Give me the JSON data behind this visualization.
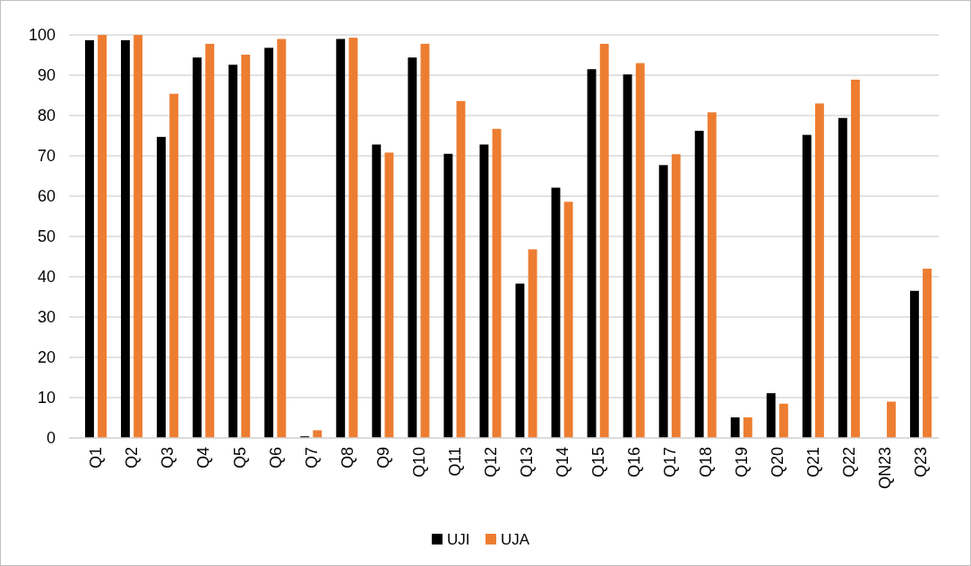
{
  "chart_data": {
    "type": "bar",
    "categories": [
      "Q1",
      "Q2",
      "Q3",
      "Q4",
      "Q5",
      "Q6",
      "Q7",
      "Q8",
      "Q9",
      "Q10",
      "Q11",
      "Q12",
      "Q13",
      "Q14",
      "Q15",
      "Q16",
      "Q17",
      "Q18",
      "Q19",
      "Q20",
      "Q21",
      "Q22",
      "QN23",
      "Q23"
    ],
    "series": [
      {
        "name": "UJI",
        "color": "#000000",
        "values": [
          98.7,
          98.7,
          74.7,
          94.4,
          92.6,
          96.8,
          0.4,
          99.0,
          72.8,
          94.4,
          70.5,
          72.8,
          38.3,
          62.1,
          91.5,
          90.2,
          67.7,
          76.2,
          5.1,
          11.1,
          75.2,
          79.4,
          null,
          36.5
        ]
      },
      {
        "name": "UJA",
        "color": "#ed7d31",
        "values": [
          100,
          100,
          85.4,
          97.8,
          95.1,
          99.0,
          1.9,
          99.3,
          70.8,
          97.8,
          83.6,
          76.7,
          46.8,
          58.6,
          97.8,
          93.0,
          70.4,
          80.8,
          5.1,
          8.5,
          83.0,
          88.9,
          9.0,
          42.0
        ]
      }
    ],
    "ylim": [
      0,
      100
    ],
    "yticks": [
      0,
      10,
      20,
      30,
      40,
      50,
      60,
      70,
      80,
      90,
      100
    ],
    "grid": "y",
    "legend": "bottom"
  }
}
